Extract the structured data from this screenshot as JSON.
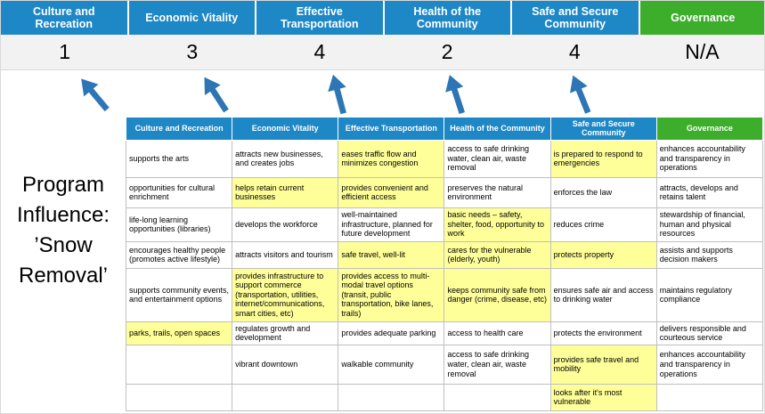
{
  "scorecard": {
    "columns": [
      {
        "label": "Culture and Recreation",
        "score": "1",
        "theme": "blue"
      },
      {
        "label": "Economic Vitality",
        "score": "3",
        "theme": "blue"
      },
      {
        "label": "Effective Transportation",
        "score": "4",
        "theme": "blue"
      },
      {
        "label": "Health of the Community",
        "score": "2",
        "theme": "blue"
      },
      {
        "label": "Safe and Secure Community",
        "score": "4",
        "theme": "blue"
      },
      {
        "label": "Governance",
        "score": "N/A",
        "theme": "green"
      }
    ]
  },
  "title": {
    "lines": [
      "Program",
      "Influence:",
      "’Snow",
      "Removal’"
    ]
  },
  "colors": {
    "header_blue": "#1E87C5",
    "header_green": "#3DAE2B",
    "highlight_yellow": "#FFFF99",
    "score_bg": "#F2F2F2",
    "arrow_blue": "#2E75B6",
    "border_gray": "#BFBFBF"
  },
  "table": {
    "headers": [
      {
        "label": "Culture and Recreation",
        "theme": "blue"
      },
      {
        "label": "Economic Vitality",
        "theme": "blue"
      },
      {
        "label": "Effective Transportation",
        "theme": "blue"
      },
      {
        "label": "Health of the Community",
        "theme": "blue"
      },
      {
        "label": "Safe and Secure Community",
        "theme": "blue"
      },
      {
        "label": "Governance",
        "theme": "green"
      }
    ],
    "rows": [
      [
        {
          "text": "supports the arts",
          "highlight": false
        },
        {
          "text": "attracts new businesses, and creates jobs",
          "highlight": false
        },
        {
          "text": "eases traffic flow and minimizes congestion",
          "highlight": true
        },
        {
          "text": "access to safe drinking water, clean air, waste removal",
          "highlight": false
        },
        {
          "text": "is prepared to respond to emergencies",
          "highlight": true
        },
        {
          "text": "enhances accountability and transparency in operations",
          "highlight": false
        }
      ],
      [
        {
          "text": "opportunities for cultural enrichment",
          "highlight": false
        },
        {
          "text": "helps retain current businesses",
          "highlight": true
        },
        {
          "text": "provides convenient and efficient access",
          "highlight": true
        },
        {
          "text": "preserves the natural environment",
          "highlight": false
        },
        {
          "text": "enforces the law",
          "highlight": false
        },
        {
          "text": "attracts, develops and retains talent",
          "highlight": false
        }
      ],
      [
        {
          "text": "life-long learning opportunities (libraries)",
          "highlight": false
        },
        {
          "text": "develops the workforce",
          "highlight": false
        },
        {
          "text": "well-maintained infrastructure, planned for future development",
          "highlight": false
        },
        {
          "text": "basic needs – safety, shelter, food, opportunity to work",
          "highlight": true
        },
        {
          "text": "reduces crime",
          "highlight": false
        },
        {
          "text": "stewardship of financial, human and physical resources",
          "highlight": false
        }
      ],
      [
        {
          "text": "encourages healthy people (promotes active lifestyle)",
          "highlight": false
        },
        {
          "text": "attracts visitors and tourism",
          "highlight": false
        },
        {
          "text": "safe travel, well-lit",
          "highlight": true
        },
        {
          "text": "cares for the vulnerable (elderly, youth)",
          "highlight": true
        },
        {
          "text": "protects property",
          "highlight": true
        },
        {
          "text": "assists and supports decision makers",
          "highlight": false
        }
      ],
      [
        {
          "text": "supports community events, and entertainment options",
          "highlight": false
        },
        {
          "text": "provides infrastructure to support commerce (transportation, utilities, internet/communications, smart cities, etc)",
          "highlight": true
        },
        {
          "text": "provides access to multi-modal travel options (transit, public transportation, bike lanes, trails)",
          "highlight": true
        },
        {
          "text": "keeps community safe from danger (crime, disease, etc)",
          "highlight": true
        },
        {
          "text": "ensures safe air and access to drinking water",
          "highlight": false
        },
        {
          "text": "maintains regulatory compliance",
          "highlight": false
        }
      ],
      [
        {
          "text": "parks, trails, open spaces",
          "highlight": true
        },
        {
          "text": "regulates growth and development",
          "highlight": false
        },
        {
          "text": "provides adequate parking",
          "highlight": false
        },
        {
          "text": "access to health care",
          "highlight": false
        },
        {
          "text": "protects the environment",
          "highlight": false
        },
        {
          "text": "delivers responsible and courteous service",
          "highlight": false
        }
      ],
      [
        {
          "text": "",
          "highlight": false
        },
        {
          "text": "vibrant downtown",
          "highlight": false
        },
        {
          "text": "walkable community",
          "highlight": false
        },
        {
          "text": "access to safe drinking water, clean air, waste removal",
          "highlight": false
        },
        {
          "text": "provides safe travel and mobility",
          "highlight": true
        },
        {
          "text": "enhances accountability and transparency in operations",
          "highlight": false
        }
      ],
      [
        {
          "text": "",
          "highlight": false
        },
        {
          "text": "",
          "highlight": false
        },
        {
          "text": "",
          "highlight": false
        },
        {
          "text": "",
          "highlight": false
        },
        {
          "text": "looks after it's most vulnerable",
          "highlight": true
        },
        {
          "text": "",
          "highlight": false
        }
      ]
    ]
  }
}
